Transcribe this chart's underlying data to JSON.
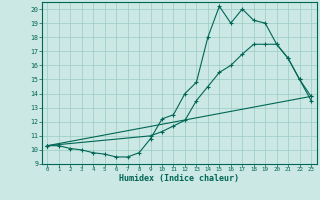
{
  "xlabel": "Humidex (Indice chaleur)",
  "bg_color": "#cce8e4",
  "grid_color": "#99ccc4",
  "line_color": "#006655",
  "xlim": [
    -0.5,
    23.5
  ],
  "ylim": [
    9,
    20.5
  ],
  "xticks": [
    0,
    1,
    2,
    3,
    4,
    5,
    6,
    7,
    8,
    9,
    10,
    11,
    12,
    13,
    14,
    15,
    16,
    17,
    18,
    19,
    20,
    21,
    22,
    23
  ],
  "yticks": [
    9,
    10,
    11,
    12,
    13,
    14,
    15,
    16,
    17,
    18,
    19,
    20
  ],
  "line1_x": [
    0,
    1,
    2,
    3,
    4,
    5,
    6,
    7,
    8,
    9,
    10,
    11,
    12,
    13,
    14,
    15,
    16,
    17,
    18,
    19,
    20,
    21,
    22,
    23
  ],
  "line1_y": [
    10.3,
    10.3,
    10.1,
    10.0,
    9.8,
    9.7,
    9.5,
    9.5,
    9.8,
    10.8,
    12.2,
    12.5,
    14.0,
    14.8,
    18.0,
    20.2,
    19.0,
    20.0,
    19.2,
    19.0,
    17.5,
    16.5,
    15.0,
    13.8
  ],
  "line2_x": [
    0,
    23
  ],
  "line2_y": [
    10.3,
    13.8
  ],
  "line3_x": [
    0,
    9,
    10,
    11,
    12,
    13,
    14,
    15,
    16,
    17,
    18,
    19,
    20,
    21,
    22,
    23
  ],
  "line3_y": [
    10.3,
    11.0,
    11.3,
    11.7,
    12.1,
    13.5,
    14.5,
    15.5,
    16.0,
    16.8,
    17.5,
    17.5,
    17.5,
    16.5,
    15.0,
    13.5
  ]
}
